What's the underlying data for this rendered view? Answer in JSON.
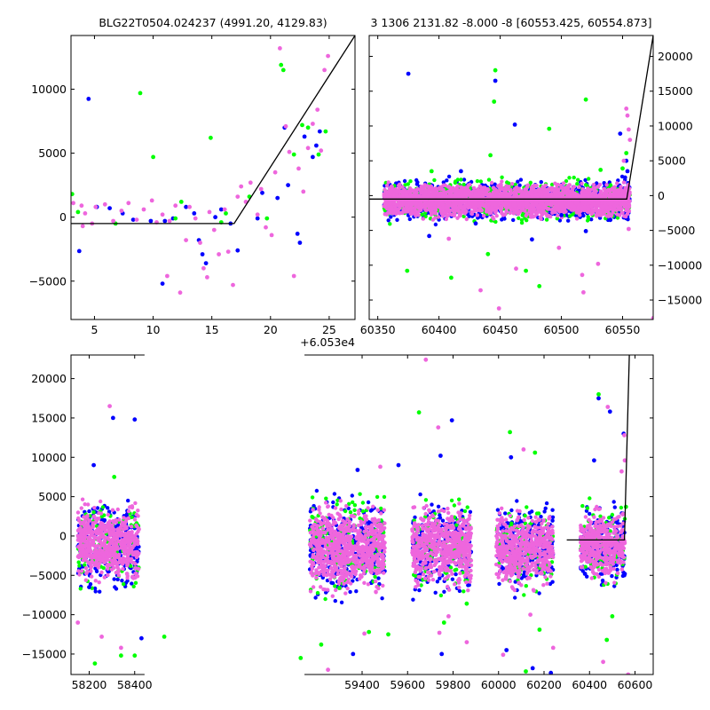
{
  "figure": {
    "title_left": "BLG22T0504.024237 (4991.20, 4129.83)",
    "title_right": "3 1306 2131.82 -8.000 -8 [60553.425, 60554.873]",
    "colors": {
      "blue": "#0000ff",
      "green": "#00ff00",
      "pink": "#ee66dd",
      "line": "#000000"
    }
  },
  "chart_data": [
    {
      "type": "scatter",
      "name": "zoom",
      "xlim": [
        3,
        27.2
      ],
      "ylim": [
        -8000,
        14200
      ],
      "xticks": [
        5,
        10,
        15,
        20,
        25
      ],
      "xtick_labels": [
        "5",
        "10",
        "15",
        "20",
        "25"
      ],
      "yticks": [
        -5000,
        0,
        5000,
        10000
      ],
      "ytick_labels": [
        "−5000",
        "0",
        "5000",
        "10000"
      ],
      "offset_label": "+6.053e4",
      "model": [
        [
          3,
          -500
        ],
        [
          16.9,
          -500
        ],
        [
          27.2,
          14200
        ]
      ],
      "points": {
        "blue": [
          [
            4.5,
            9250
          ],
          [
            3.7,
            -2650
          ],
          [
            6.3,
            700
          ],
          [
            7.4,
            300
          ],
          [
            8.3,
            -200
          ],
          [
            9.8,
            -300
          ],
          [
            11.0,
            -300
          ],
          [
            11.7,
            -100
          ],
          [
            12.8,
            800
          ],
          [
            13.5,
            300
          ],
          [
            14.2,
            -2900
          ],
          [
            14.5,
            -3600
          ],
          [
            15.3,
            0
          ],
          [
            16.6,
            -500
          ],
          [
            17.2,
            -2600
          ],
          [
            18.9,
            -100
          ],
          [
            20.6,
            1500
          ],
          [
            21.2,
            7000
          ],
          [
            22.3,
            -1300
          ],
          [
            22.9,
            6300
          ],
          [
            23.6,
            4700
          ],
          [
            23.9,
            5600
          ],
          [
            24.2,
            6700
          ],
          [
            10.8,
            -5200
          ],
          [
            13.9,
            -1800
          ],
          [
            19.3,
            1900
          ],
          [
            21.5,
            2500
          ],
          [
            22.5,
            -2000
          ],
          [
            5.2,
            800
          ],
          [
            15.8,
            600
          ]
        ],
        "green": [
          [
            3.1,
            1800
          ],
          [
            3.6,
            400
          ],
          [
            8.9,
            9700
          ],
          [
            10.0,
            4700
          ],
          [
            11.9,
            -100
          ],
          [
            14.9,
            6200
          ],
          [
            15.8,
            -400
          ],
          [
            18.2,
            1600
          ],
          [
            20.9,
            11900
          ],
          [
            21.1,
            11500
          ],
          [
            22.0,
            4900
          ],
          [
            22.7,
            7200
          ],
          [
            23.2,
            7000
          ],
          [
            24.1,
            4900
          ],
          [
            24.7,
            6700
          ],
          [
            19.7,
            -100
          ],
          [
            16.2,
            300
          ],
          [
            6.8,
            -500
          ],
          [
            12.4,
            1200
          ]
        ],
        "pink": [
          [
            3.2,
            1100
          ],
          [
            3.9,
            900
          ],
          [
            4.2,
            300
          ],
          [
            4.8,
            -500
          ],
          [
            5.1,
            800
          ],
          [
            5.9,
            1000
          ],
          [
            6.6,
            -300
          ],
          [
            7.3,
            500
          ],
          [
            7.9,
            1100
          ],
          [
            8.6,
            -200
          ],
          [
            9.2,
            600
          ],
          [
            9.9,
            1300
          ],
          [
            10.3,
            -400
          ],
          [
            10.8,
            200
          ],
          [
            11.4,
            -300
          ],
          [
            11.9,
            900
          ],
          [
            12.3,
            -5900
          ],
          [
            12.8,
            -1800
          ],
          [
            13.1,
            800
          ],
          [
            13.6,
            -100
          ],
          [
            14.0,
            -2000
          ],
          [
            14.3,
            -4000
          ],
          [
            14.8,
            400
          ],
          [
            15.2,
            -1000
          ],
          [
            15.6,
            -2900
          ],
          [
            16.1,
            600
          ],
          [
            16.8,
            -5300
          ],
          [
            17.2,
            1600
          ],
          [
            17.5,
            2400
          ],
          [
            17.9,
            1200
          ],
          [
            18.3,
            2700
          ],
          [
            18.9,
            200
          ],
          [
            19.2,
            2200
          ],
          [
            19.6,
            -800
          ],
          [
            20.1,
            -1400
          ],
          [
            20.4,
            3500
          ],
          [
            20.8,
            13200
          ],
          [
            21.3,
            7100
          ],
          [
            21.6,
            5100
          ],
          [
            22.0,
            -4600
          ],
          [
            22.4,
            3800
          ],
          [
            22.8,
            2000
          ],
          [
            23.2,
            5400
          ],
          [
            23.6,
            7300
          ],
          [
            24.0,
            8400
          ],
          [
            24.3,
            5200
          ],
          [
            24.6,
            11500
          ],
          [
            24.9,
            12600
          ],
          [
            4.0,
            -700
          ],
          [
            11.2,
            -4600
          ],
          [
            14.6,
            -4700
          ],
          [
            16.4,
            -2700
          ]
        ]
      }
    },
    {
      "type": "scatter",
      "name": "recent",
      "xlim": [
        60343,
        60575
      ],
      "ylim": [
        -17800,
        23000
      ],
      "xticks": [
        60350,
        60400,
        60450,
        60500,
        60550
      ],
      "xtick_labels": [
        "60350",
        "60400",
        "60450",
        "60500",
        "60550"
      ],
      "yticks": [
        -15000,
        -10000,
        -5000,
        0,
        5000,
        10000,
        15000,
        20000
      ],
      "ytick_labels": [
        "−15000",
        "−10000",
        "−5000",
        "0",
        "5000",
        "10000",
        "15000",
        "20000"
      ],
      "model": [
        [
          60343,
          -500
        ],
        [
          60553.4,
          -500
        ],
        [
          60575,
          23000
        ]
      ],
      "points": {
        "blue": [
          [
            60375,
            17500
          ],
          [
            60446,
            16500
          ],
          [
            60462,
            10200
          ],
          [
            60392,
            -5800
          ],
          [
            60430,
            -4000
          ],
          [
            60476,
            -6300
          ],
          [
            60500,
            -2800
          ],
          [
            60540,
            -3500
          ],
          [
            60548,
            8900
          ],
          [
            60553,
            5000
          ],
          [
            60554,
            3500
          ],
          [
            60552,
            2600
          ],
          [
            60418,
            3500
          ],
          [
            60520,
            -5100
          ]
        ],
        "green": [
          [
            60446,
            18000
          ],
          [
            60445,
            13500
          ],
          [
            60520,
            13800
          ],
          [
            60490,
            9600
          ],
          [
            60442,
            5800
          ],
          [
            60374,
            -10800
          ],
          [
            60410,
            -11800
          ],
          [
            60471,
            -10800
          ],
          [
            60482,
            -13000
          ],
          [
            60440,
            -8400
          ],
          [
            60550,
            3900
          ],
          [
            60553,
            6100
          ],
          [
            60394,
            3500
          ],
          [
            60532,
            3700
          ]
        ],
        "pink": [
          [
            60434,
            -13600
          ],
          [
            60449,
            -16200
          ],
          [
            60517,
            -11400
          ],
          [
            60518,
            -13900
          ],
          [
            60530,
            -9800
          ],
          [
            60555,
            -4800
          ],
          [
            60554,
            11500
          ],
          [
            60556,
            8000
          ],
          [
            60551,
            5000
          ],
          [
            60463,
            -10500
          ],
          [
            60408,
            -6200
          ],
          [
            60498,
            -7500
          ],
          [
            60575,
            -17600
          ],
          [
            60553,
            12500
          ],
          [
            60555,
            9500
          ],
          [
            60552,
            -200
          ]
        ]
      },
      "bands": [
        {
          "x0": 60355,
          "x1": 60556,
          "y0": -2200,
          "y1": 800
        }
      ]
    },
    {
      "type": "scatter",
      "name": "full",
      "xlim": [
        58120,
        60680
      ],
      "ylim": [
        -17600,
        23000
      ],
      "xticks": [
        58200,
        58400,
        59400,
        59600,
        59800,
        60000,
        60200,
        60400,
        60600
      ],
      "xtick_labels": [
        "58200",
        "58400",
        "59400",
        "59600",
        "59800",
        "60000",
        "60200",
        "60400",
        "60600"
      ],
      "yticks": [
        -15000,
        -10000,
        -5000,
        0,
        5000,
        10000,
        15000,
        20000
      ],
      "ytick_labels": [
        "−15000",
        "−10000",
        "−5000",
        "0",
        "5000",
        "10000",
        "15000",
        "20000"
      ],
      "model": [
        [
          60300,
          -500
        ],
        [
          60553.4,
          -500
        ],
        [
          60575,
          23000
        ]
      ],
      "points": {
        "blue": [
          [
            58220,
            9000
          ],
          [
            58305,
            15000
          ],
          [
            58400,
            14800
          ],
          [
            58430,
            -13000
          ],
          [
            59380,
            8400
          ],
          [
            59360,
            -15000
          ],
          [
            59560,
            9000
          ],
          [
            59745,
            10200
          ],
          [
            59795,
            14700
          ],
          [
            60035,
            -14500
          ],
          [
            60055,
            10000
          ],
          [
            60150,
            -16800
          ],
          [
            60230,
            -17400
          ],
          [
            60440,
            17500
          ],
          [
            60490,
            15800
          ],
          [
            60550,
            13000
          ],
          [
            59750,
            -15000
          ],
          [
            58200,
            -6500
          ],
          [
            60380,
            -4800
          ],
          [
            60420,
            9600
          ]
        ],
        "green": [
          [
            58225,
            -16200
          ],
          [
            58340,
            -15200
          ],
          [
            58310,
            7500
          ],
          [
            58530,
            -12800
          ],
          [
            59130,
            -15500
          ],
          [
            59220,
            -13800
          ],
          [
            59430,
            -12200
          ],
          [
            59515,
            -12500
          ],
          [
            59650,
            15700
          ],
          [
            59760,
            -11000
          ],
          [
            59860,
            -8600
          ],
          [
            60050,
            13200
          ],
          [
            60120,
            -17200
          ],
          [
            60160,
            10600
          ],
          [
            60180,
            -11900
          ],
          [
            60440,
            18000
          ],
          [
            60476,
            -13200
          ],
          [
            60500,
            -10200
          ],
          [
            60560,
            3700
          ],
          [
            59300,
            -6600
          ],
          [
            58400,
            -15200
          ]
        ],
        "pink": [
          [
            58290,
            16500
          ],
          [
            58255,
            -12800
          ],
          [
            58340,
            -14200
          ],
          [
            59410,
            -12400
          ],
          [
            59250,
            -17000
          ],
          [
            59680,
            22400
          ],
          [
            59735,
            13800
          ],
          [
            59740,
            -12300
          ],
          [
            59780,
            -10200
          ],
          [
            59860,
            -13500
          ],
          [
            60110,
            11000
          ],
          [
            60140,
            -10000
          ],
          [
            60240,
            -14200
          ],
          [
            60460,
            -16000
          ],
          [
            60480,
            16400
          ],
          [
            60570,
            -17600
          ],
          [
            60553,
            12800
          ],
          [
            60555,
            9600
          ],
          [
            60541,
            8200
          ],
          [
            59480,
            8800
          ],
          [
            58150,
            -11000
          ],
          [
            60020,
            -15100
          ]
        ]
      },
      "bands": [
        {
          "x0": 58150,
          "x1": 58420,
          "y0": -4000,
          "y1": 2000
        },
        {
          "x0": 59170,
          "x1": 59500,
          "y0": -4800,
          "y1": 1800
        },
        {
          "x0": 59620,
          "x1": 59880,
          "y0": -4500,
          "y1": 2000
        },
        {
          "x0": 59990,
          "x1": 60240,
          "y0": -4500,
          "y1": 1500
        },
        {
          "x0": 60360,
          "x1": 60556,
          "y0": -4000,
          "y1": 1500
        }
      ]
    }
  ]
}
